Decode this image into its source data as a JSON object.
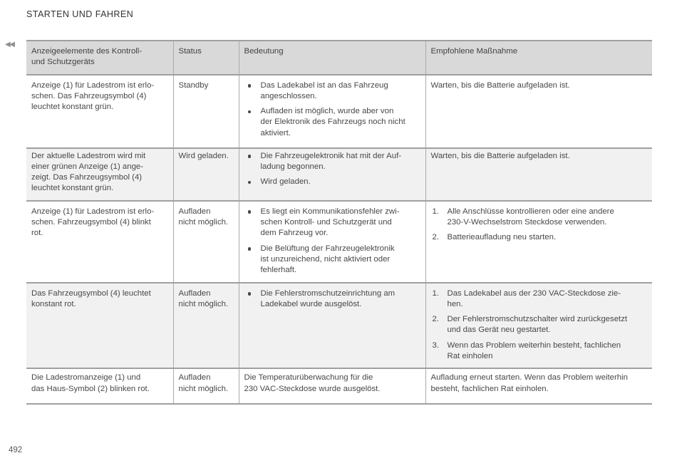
{
  "page": {
    "section_title": "STARTEN UND FAHREN",
    "page_number": "492"
  },
  "icons": {
    "double_left_chevron": "◀◀"
  },
  "colors": {
    "header_bg": "#d9d9d9",
    "alt_row_bg": "#f1f1f1",
    "border_h": "#a0a0a0",
    "border_v": "#ababab",
    "text": "#484848",
    "title": "#333333",
    "muted": "#8f8f8f"
  },
  "table": {
    "columns": [
      "Anzeigeelemente des Kontroll-\nund Schutzgeräts",
      "Status",
      "Bedeutung",
      "Empfohlene Maßnahme"
    ],
    "rows": [
      {
        "anzeige": "Anzeige (1) für Ladestrom ist erlo-\nschen. Das Fahrzeugsymbol (4)\nleuchtet konstant grün.",
        "status": "Standby",
        "bedeutung": {
          "bullets": [
            "Das Ladekabel ist an das Fahrzeug\nangeschlossen.",
            "Aufladen ist möglich, wurde aber von\nder Elektronik des Fahrzeugs noch nicht\naktiviert."
          ]
        },
        "massnahme": {
          "text": "Warten, bis die Batterie aufgeladen ist."
        }
      },
      {
        "anzeige": "Der aktuelle Ladestrom wird mit\neiner grünen Anzeige (1) ange-\nzeigt. Das Fahrzeugsymbol (4)\nleuchtet konstant grün.",
        "status": "Wird geladen.",
        "bedeutung": {
          "bullets": [
            "Die Fahrzeugelektronik hat mit der Auf-\nladung begonnen.",
            "Wird geladen."
          ]
        },
        "massnahme": {
          "text": "Warten, bis die Batterie aufgeladen ist."
        }
      },
      {
        "anzeige": "Anzeige (1) für Ladestrom ist erlo-\nschen. Fahrzeugsymbol (4) blinkt\nrot.",
        "status": "Aufladen\nnicht möglich.",
        "bedeutung": {
          "bullets": [
            "Es liegt ein Kommunikationsfehler zwi-\nschen Kontroll- und Schutzgerät und\ndem Fahrzeug vor.",
            "Die Belüftung der Fahrzeugelektronik\nist unzureichend, nicht aktiviert oder\nfehlerhaft."
          ]
        },
        "massnahme": {
          "numbered": [
            "Alle Anschlüsse kontrollieren oder eine andere\n230-V-Wechselstrom Steckdose verwenden.",
            "Batterieaufladung neu starten."
          ]
        }
      },
      {
        "anzeige": "Das Fahrzeugsymbol (4) leuchtet\nkonstant rot.",
        "status": "Aufladen\nnicht möglich.",
        "bedeutung": {
          "bullets": [
            "Die Fehlerstromschutzeinrichtung am\nLadekabel wurde ausgelöst."
          ]
        },
        "massnahme": {
          "numbered": [
            "Das Ladekabel aus der 230 VAC-Steckdose zie-\nhen.",
            "Der Fehlerstromschutzschalter wird zurückgesetzt\nund das Gerät neu gestartet.",
            "Wenn das Problem weiterhin besteht, fachlichen\nRat einholen"
          ]
        }
      },
      {
        "anzeige": "Die Ladestromanzeige (1) und\ndas Haus-Symbol (2) blinken rot.",
        "status": "Aufladen\nnicht möglich.",
        "bedeutung": {
          "text": "Die Temperaturüberwachung für die\n230 VAC-Steckdose wurde ausgelöst."
        },
        "massnahme": {
          "text": "Aufladung erneut starten. Wenn das Problem weiterhin\nbesteht, fachlichen Rat einholen."
        }
      }
    ]
  }
}
